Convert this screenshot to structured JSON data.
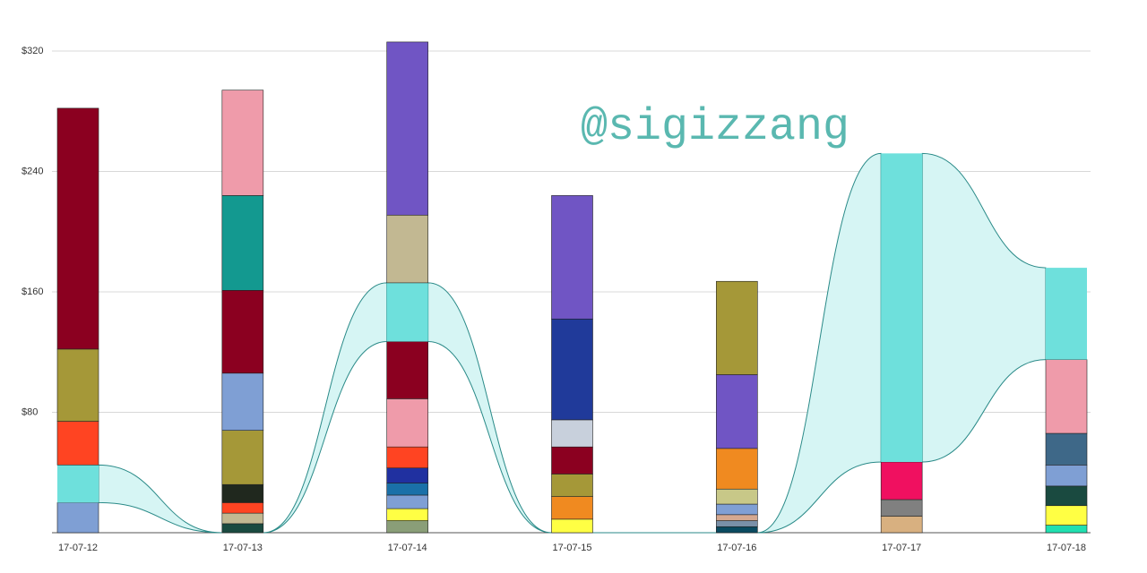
{
  "chart_data": {
    "type": "stacked-flow-bar",
    "watermark": "@sigizzang",
    "categories": [
      "17-07-12",
      "17-07-13",
      "17-07-14",
      "17-07-15",
      "17-07-16",
      "17-07-17",
      "17-07-18"
    ],
    "ylim": [
      0,
      320
    ],
    "yticks": [
      {
        "value": 80,
        "label": "$80"
      },
      {
        "value": 160,
        "label": "$160"
      },
      {
        "value": 240,
        "label": "$240"
      },
      {
        "value": 320,
        "label": "$320"
      }
    ],
    "grid": true,
    "flow_color": "#6ee0dc",
    "stacks": [
      [
        {
          "color": "#7f9fd4",
          "value": 20
        },
        {
          "color": "#6ee0dc",
          "value": 25
        },
        {
          "color": "#ff4422",
          "value": 29
        },
        {
          "color": "#a59838",
          "value": 48
        },
        {
          "color": "#8b0020",
          "value": 160
        }
      ],
      [
        {
          "color": "#1a4a40",
          "value": 6
        },
        {
          "color": "#c2b892",
          "value": 7
        },
        {
          "color": "#ff4422",
          "value": 7
        },
        {
          "color": "#20281e",
          "value": 12
        },
        {
          "color": "#a59838",
          "value": 36
        },
        {
          "color": "#7f9fd4",
          "value": 38
        },
        {
          "color": "#8b0020",
          "value": 55
        },
        {
          "color": "#139990",
          "value": 63
        },
        {
          "color": "#ef9baa",
          "value": 70
        }
      ],
      [
        {
          "color": "#8a9e78",
          "value": 8
        },
        {
          "color": "#ffff44",
          "value": 8
        },
        {
          "color": "#7f9fd4",
          "value": 9
        },
        {
          "color": "#1a70a8",
          "value": 8
        },
        {
          "color": "#2030a0",
          "value": 10
        },
        {
          "color": "#ff4422",
          "value": 14
        },
        {
          "color": "#ef9baa",
          "value": 32
        },
        {
          "color": "#8b0020",
          "value": 38
        },
        {
          "color": "#6ee0dc",
          "value": 39
        },
        {
          "color": "#c2b892",
          "value": 45
        },
        {
          "color": "#7055c4",
          "value": 115
        }
      ],
      [
        {
          "color": "#ffff44",
          "value": 9
        },
        {
          "color": "#f08a20",
          "value": 15
        },
        {
          "color": "#a59838",
          "value": 15
        },
        {
          "color": "#8b0020",
          "value": 18
        },
        {
          "color": "#c8d0dc",
          "value": 18
        },
        {
          "color": "#203a9a",
          "value": 67
        },
        {
          "color": "#7055c4",
          "value": 82
        }
      ],
      [
        {
          "color": "#0a4a60",
          "value": 4
        },
        {
          "color": "#7a90a8",
          "value": 4
        },
        {
          "color": "#d4a890",
          "value": 4
        },
        {
          "color": "#7f9fd4",
          "value": 7
        },
        {
          "color": "#c8c888",
          "value": 10
        },
        {
          "color": "#f08a20",
          "value": 27
        },
        {
          "color": "#7055c4",
          "value": 49
        },
        {
          "color": "#a59838",
          "value": 62
        }
      ],
      [
        {
          "color": "#d8b080",
          "value": 11
        },
        {
          "color": "#808080",
          "value": 11
        },
        {
          "color": "#f01060",
          "value": 25
        },
        {
          "color": "#6ee0dc",
          "value": 205
        }
      ],
      [
        {
          "color": "#20e0b0",
          "value": 5
        },
        {
          "color": "#ffff44",
          "value": 13
        },
        {
          "color": "#1a4a40",
          "value": 13
        },
        {
          "color": "#7f9fd4",
          "value": 14
        },
        {
          "color": "#3e6888",
          "value": 21
        },
        {
          "color": "#ef9baa",
          "value": 49
        },
        {
          "color": "#6ee0dc",
          "value": 61
        }
      ]
    ]
  }
}
